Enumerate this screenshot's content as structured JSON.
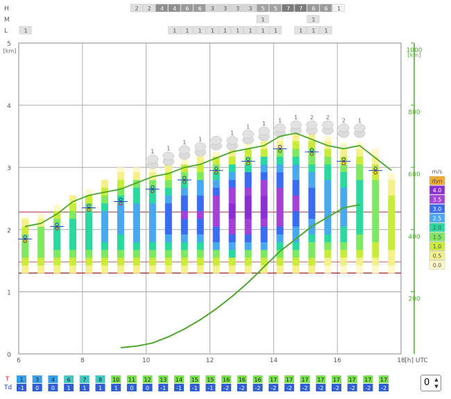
{
  "cloud_rows": {
    "labels": [
      "H",
      "M",
      "L"
    ],
    "H": [
      "2",
      "2",
      "4",
      "4",
      "6",
      "6",
      "3",
      "3",
      "3",
      "3",
      "5",
      "5",
      "7",
      "7",
      "6",
      "6",
      "1"
    ],
    "M": [
      "",
      "",
      "",
      "",
      "",
      "",
      "",
      "",
      "",
      "",
      "1",
      "",
      "",
      "",
      "1",
      "",
      ""
    ],
    "L": [
      "1",
      "",
      "",
      "1",
      "1",
      "1",
      "1",
      "1",
      "1",
      "1",
      "1",
      "1",
      "",
      "1",
      "1",
      "1",
      ""
    ]
  },
  "colors": {
    "grid": "#999999",
    "frame": "#888888",
    "green_line": "#4aa829",
    "level_line": "#9b1c1c",
    "temp_mark": "#d02020",
    "dew_mark": "#1e3fbf"
  },
  "chart_data": {
    "type": "bar",
    "x": [
      6.2,
      6.7,
      7.2,
      7.7,
      8.2,
      8.7,
      9.2,
      9.7,
      10.2,
      10.7,
      11.2,
      11.7,
      12.2,
      12.7,
      13.2,
      13.7,
      14.2,
      14.7,
      15.2,
      15.7,
      16.2,
      16.7,
      17.2,
      17.7
    ],
    "x_ticks": [
      "6",
      "8",
      "10",
      "12",
      "14",
      "16",
      "18"
    ],
    "x_tick_values": [
      6,
      8,
      10,
      12,
      14,
      16,
      18
    ],
    "x_unit": "[h] UTC",
    "xlim": [
      6,
      18
    ],
    "y_left_ticks": [
      "0",
      "1",
      "2",
      "3",
      "4",
      "5"
    ],
    "y_left_unit": "[km]",
    "ylim": [
      0,
      5
    ],
    "y_right_ticks": [
      "200",
      "400",
      "600",
      "800",
      "1000"
    ],
    "y_right_tick_values": [
      200,
      400,
      600,
      800,
      1000
    ],
    "y_right_unit": "[km]",
    "y_right_lim": [
      0,
      1000
    ],
    "boundary_layer_top_km": [
      2.05,
      2.1,
      2.25,
      2.45,
      2.55,
      2.6,
      2.65,
      2.75,
      2.85,
      2.9,
      3.0,
      3.05,
      3.15,
      3.25,
      3.3,
      3.35,
      3.5,
      3.55,
      3.45,
      3.35,
      3.3,
      3.35,
      3.15,
      2.95
    ],
    "right_axis_series": [
      0,
      0,
      0,
      0,
      0,
      0,
      20,
      25,
      35,
      55,
      80,
      110,
      145,
      185,
      230,
      280,
      330,
      370,
      410,
      440,
      470,
      480,
      0,
      0
    ],
    "columns": [
      {
        "top": 2.2,
        "bottom": 1.3,
        "level": 1.5
      },
      {
        "top": 2.25,
        "bottom": 1.3,
        "level": 1.5
      },
      {
        "top": 2.4,
        "bottom": 1.3,
        "level": 1.75
      },
      {
        "top": 2.55,
        "bottom": 1.3,
        "level": 2.0
      },
      {
        "top": 2.65,
        "bottom": 1.3,
        "level": 2.0
      },
      {
        "top": 2.8,
        "bottom": 1.3,
        "level": 2.25
      },
      {
        "top": 3.0,
        "bottom": 1.3,
        "level": 2.25
      },
      {
        "top": 3.0,
        "bottom": 1.3,
        "level": 2.5
      },
      {
        "top": 3.0,
        "bottom": 1.3,
        "level": 2.5
      },
      {
        "top": 3.05,
        "bottom": 1.3,
        "level": 2.75
      },
      {
        "top": 3.15,
        "bottom": 1.3,
        "level": 3.0
      },
      {
        "top": 3.2,
        "bottom": 1.3,
        "level": 3.0
      },
      {
        "top": 3.25,
        "bottom": 1.3,
        "level": 3.25
      },
      {
        "top": 3.3,
        "bottom": 1.3,
        "level": 3.5
      },
      {
        "top": 3.4,
        "bottom": 1.3,
        "level": 3.5
      },
      {
        "top": 3.45,
        "bottom": 1.3,
        "level": 3.5
      },
      {
        "top": 3.5,
        "bottom": 1.3,
        "level": 3.25
      },
      {
        "top": 3.55,
        "bottom": 1.3,
        "level": 3.0
      },
      {
        "top": 3.55,
        "bottom": 1.3,
        "level": 2.75
      },
      {
        "top": 3.5,
        "bottom": 1.3,
        "level": 2.5
      },
      {
        "top": 3.4,
        "bottom": 1.3,
        "level": 2.25
      },
      {
        "top": 3.4,
        "bottom": 1.3,
        "level": 2.0
      },
      {
        "top": 3.3,
        "bottom": 1.3,
        "level": 1.5
      },
      {
        "top": 2.9,
        "bottom": 1.3,
        "level": 1.0
      }
    ],
    "cloud_tops": [
      {
        "x": 10.2,
        "top": 3.0,
        "label": "1"
      },
      {
        "x": 10.7,
        "top": 3.05,
        "label": "1"
      },
      {
        "x": 11.2,
        "top": 3.15,
        "label": "1"
      },
      {
        "x": 11.7,
        "top": 3.2,
        "label": "1"
      },
      {
        "x": 12.2,
        "top": 3.3,
        "label": ""
      },
      {
        "x": 12.7,
        "top": 3.3,
        "label": "1"
      },
      {
        "x": 13.2,
        "top": 3.4,
        "label": "1"
      },
      {
        "x": 13.7,
        "top": 3.45,
        "label": "1"
      },
      {
        "x": 14.2,
        "top": 3.5,
        "label": "1"
      },
      {
        "x": 14.7,
        "top": 3.55,
        "label": "1"
      },
      {
        "x": 15.2,
        "top": 3.55,
        "label": "2"
      },
      {
        "x": 15.7,
        "top": 3.55,
        "label": "2"
      },
      {
        "x": 16.2,
        "top": 3.5,
        "label": "2"
      },
      {
        "x": 16.7,
        "top": 3.5,
        "label": "1"
      }
    ],
    "cloud_top_numbers": [
      "1",
      "1",
      "1",
      "1",
      "1",
      "1",
      "1",
      "1",
      "1",
      "2",
      "2",
      "2",
      "1"
    ],
    "legend": {
      "title": "m/s",
      "items": [
        {
          "label": "dyn",
          "color": "#f0a830"
        },
        {
          "label": "4.0",
          "color": "#8c2fd0"
        },
        {
          "label": "3.5",
          "color": "#a442d6"
        },
        {
          "label": "3.0",
          "color": "#3a6cf0"
        },
        {
          "label": "2.5",
          "color": "#4aa8ef"
        },
        {
          "label": "2.0",
          "color": "#2ad8a0"
        },
        {
          "label": "1.5",
          "color": "#7de860"
        },
        {
          "label": "1.0",
          "color": "#c9ec3a"
        },
        {
          "label": "0.5",
          "color": "#f4f08a"
        },
        {
          "label": "0.0",
          "color": "#fff9c8"
        }
      ]
    },
    "bottom_rows": {
      "T_label": "T",
      "Td_label": "Td",
      "T": [
        "1",
        "3",
        "4",
        "6",
        "7",
        "8",
        "10",
        "11",
        "12",
        "13",
        "14",
        "15",
        "15",
        "16",
        "16",
        "16",
        "17",
        "17",
        "17",
        "17",
        "17",
        "17",
        "17",
        "17"
      ],
      "Td": [
        "-1",
        "0",
        "0",
        "1",
        "1",
        "1",
        "1",
        "0",
        "0",
        "-1",
        "-1",
        "-1",
        "-1",
        "-2",
        "-2",
        "-2",
        "-2",
        "-2",
        "-2",
        "-2",
        "-2",
        "-2",
        "-2",
        "-2"
      ]
    }
  },
  "stepper": {
    "value": "0"
  }
}
